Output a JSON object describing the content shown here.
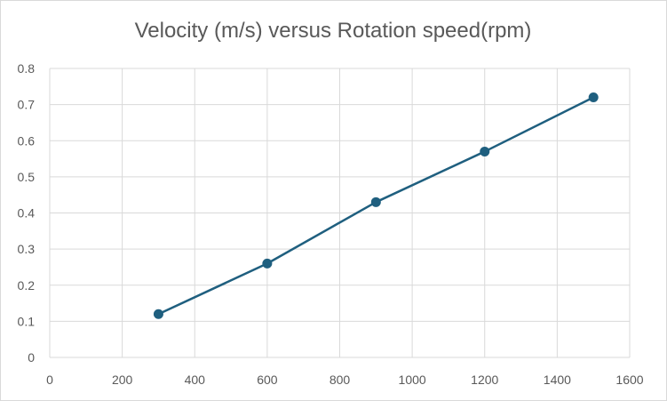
{
  "chart_data": {
    "type": "scatter",
    "title": "Velocity (m/s) versus Rotation speed(rpm)",
    "xlabel": "",
    "ylabel": "",
    "x": [
      300,
      600,
      900,
      1200,
      1500
    ],
    "series": [
      {
        "values": [
          0.12,
          0.26,
          0.43,
          0.57,
          0.72
        ]
      }
    ],
    "xlim": [
      0,
      1600
    ],
    "ylim": [
      0,
      0.8
    ],
    "x_ticks": [
      "0",
      "200",
      "400",
      "600",
      "800",
      "1000",
      "1200",
      "1400",
      "1600"
    ],
    "y_ticks": [
      "0",
      "0.1",
      "0.2",
      "0.3",
      "0.4",
      "0.5",
      "0.6",
      "0.7",
      "0.8"
    ],
    "grid": true,
    "legend": "none",
    "style": "markers-with-straight-lines",
    "colors": {
      "series": "#1f5f7f",
      "grid": "#d9d9d9",
      "text": "#595959"
    }
  }
}
